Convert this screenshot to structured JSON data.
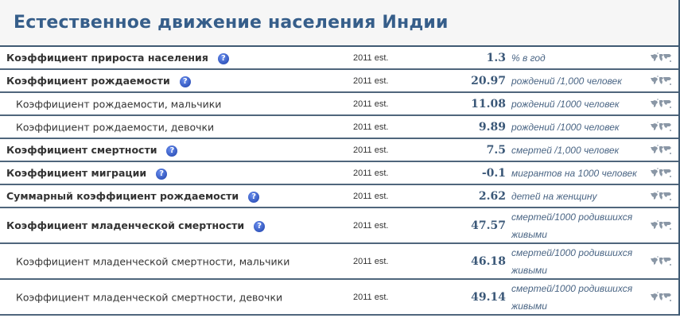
{
  "title": "Естественное движение населения Индии",
  "rows": [
    {
      "label": "Коэффициент прироста населения",
      "type": "main",
      "help": true,
      "date": "2011 est.",
      "value": "1.3",
      "unit": "% в год"
    },
    {
      "label": "Коэффициент рождаемости",
      "type": "main",
      "help": true,
      "date": "2011 est.",
      "value": "20.97",
      "unit": "рождений /1,000 человек"
    },
    {
      "label": "Коэффициент рождаемости, мальчики",
      "type": "sub",
      "help": false,
      "date": "2011 est.",
      "value": "11.08",
      "unit": "рождений /1000 человек"
    },
    {
      "label": "Коэффициент рождаемости, девочки",
      "type": "sub",
      "help": false,
      "date": "2011 est.",
      "value": "9.89",
      "unit": "рождений /1000 человек"
    },
    {
      "label": "Коэффициент смертности",
      "type": "main",
      "help": true,
      "date": "2011 est.",
      "value": "7.5",
      "unit": "смертей /1,000 человек"
    },
    {
      "label": "Коэффициент миграции",
      "type": "main",
      "help": true,
      "date": "2011 est.",
      "value": "-0.1",
      "unit": "мигрантов на 1000 человек"
    },
    {
      "label": "Суммарный коэффициент рождаемости",
      "type": "main",
      "help": true,
      "date": "2011 est.",
      "value": "2.62",
      "unit": "детей на женщину"
    },
    {
      "label": "Коэффициент младенческой смертности",
      "type": "main tall",
      "help": true,
      "date": "2011 est.",
      "value": "47.57",
      "unit": "смертей/1000 родившихся живыми"
    },
    {
      "label": "Коэффициент младенческой смертности, мальчики",
      "type": "sub tall",
      "help": false,
      "date": "2011 est.",
      "value": "46.18",
      "unit": "смертей/1000 родившихся живыми"
    },
    {
      "label": "Коэффициент младенческой смертности, девочки",
      "type": "sub tall",
      "help": false,
      "date": "2011 est.",
      "value": "49.14",
      "unit": "смертей/1000 родившихся живыми"
    }
  ],
  "icons": {
    "help": "question-icon",
    "map": "world-map-icon",
    "help_glyph": "?"
  },
  "colors": {
    "title": "#365e8a",
    "value": "#3b5878",
    "border": "#3f5a73"
  }
}
